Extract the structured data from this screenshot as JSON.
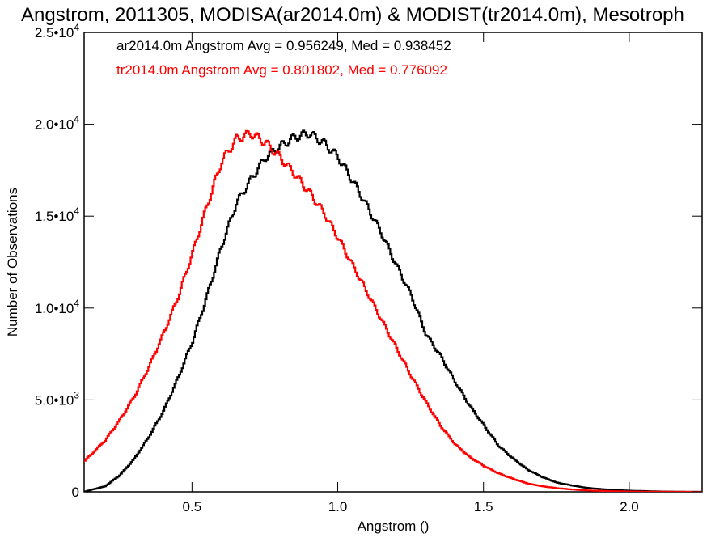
{
  "chart_data": {
    "type": "line",
    "title": "Angstrom, 2011305, MODISA(ar2014.0m) & MODIST(tr2014.0m), Mesotroph",
    "xlabel": "Angstrom ()",
    "ylabel": "Number of Observations",
    "xlim": [
      0.13,
      2.25
    ],
    "ylim": [
      0,
      25000
    ],
    "x_ticks": [
      0.5,
      1.0,
      1.5,
      2.0
    ],
    "x_tick_labels": [
      "0.5",
      "1.0",
      "1.5",
      "2.0"
    ],
    "y_ticks": [
      {
        "value": 0,
        "mantissa": "0",
        "exponent": ""
      },
      {
        "value": 5000,
        "mantissa": "5.0•10",
        "exponent": "3"
      },
      {
        "value": 10000,
        "mantissa": "1.0•10",
        "exponent": "4"
      },
      {
        "value": 15000,
        "mantissa": "1.5•10",
        "exponent": "4"
      },
      {
        "value": 20000,
        "mantissa": "2.0•10",
        "exponent": "4"
      },
      {
        "value": 25000,
        "mantissa": "2.5•10",
        "exponent": "4"
      }
    ],
    "grid": false,
    "stepped": true,
    "annotations": [
      {
        "text": "ar2014.0m Angstrom Avg = 0.956249, Med = 0.938452",
        "color": "#000000"
      },
      {
        "text": "tr2014.0m Angstrom Avg = 0.801802, Med = 0.776092",
        "color": "#ff0000"
      }
    ],
    "series": [
      {
        "color": "#000000",
        "x": [
          0.13,
          0.15,
          0.2,
          0.25,
          0.3,
          0.35,
          0.4,
          0.45,
          0.5,
          0.55,
          0.6,
          0.65,
          0.7,
          0.75,
          0.8,
          0.85,
          0.9,
          0.95,
          1.0,
          1.05,
          1.1,
          1.15,
          1.2,
          1.25,
          1.3,
          1.35,
          1.4,
          1.45,
          1.5,
          1.55,
          1.6,
          1.65,
          1.7,
          1.75,
          1.8,
          1.85,
          1.9,
          1.95,
          2.0,
          2.05,
          2.1,
          2.15,
          2.2,
          2.25
        ],
        "y": [
          0,
          100,
          300,
          900,
          1800,
          3000,
          4400,
          6200,
          8200,
          10700,
          13400,
          15700,
          17000,
          18200,
          18800,
          19300,
          19500,
          19000,
          18200,
          16900,
          15500,
          14000,
          12300,
          10700,
          8600,
          7400,
          6000,
          4700,
          3600,
          2500,
          1800,
          1200,
          800,
          500,
          350,
          220,
          150,
          100,
          60,
          40,
          20,
          10,
          0,
          0
        ]
      },
      {
        "color": "#ff0000",
        "x": [
          0.13,
          0.15,
          0.2,
          0.25,
          0.3,
          0.35,
          0.4,
          0.45,
          0.5,
          0.55,
          0.6,
          0.65,
          0.7,
          0.75,
          0.8,
          0.85,
          0.9,
          0.95,
          1.0,
          1.05,
          1.1,
          1.15,
          1.2,
          1.25,
          1.3,
          1.35,
          1.4,
          1.45,
          1.5,
          1.55,
          1.6,
          1.65,
          1.7,
          1.75,
          1.8,
          1.85,
          1.9,
          1.95,
          2.0,
          2.05,
          2.1,
          2.15,
          2.2,
          2.25
        ],
        "y": [
          1700,
          2000,
          2800,
          3900,
          5200,
          6800,
          8600,
          10600,
          13000,
          15600,
          18000,
          19200,
          19500,
          19000,
          18200,
          17300,
          16300,
          15200,
          13800,
          12300,
          10800,
          9300,
          7800,
          6300,
          4900,
          3600,
          2600,
          1900,
          1400,
          1000,
          700,
          450,
          300,
          200,
          130,
          80,
          50,
          30,
          20,
          10,
          5,
          0,
          0,
          0
        ]
      }
    ]
  }
}
